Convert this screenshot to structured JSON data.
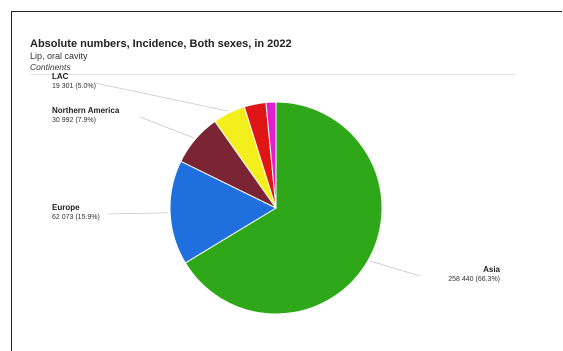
{
  "header": {
    "title": "Absolute numbers, Incidence, Both sexes, in 2022",
    "subtitle": "Lip, oral cavity",
    "subsubtitle": "Continents"
  },
  "chart_data": {
    "type": "pie",
    "title": "Absolute numbers, Incidence, Both sexes, in 2022",
    "subtitle": "Lip, oral cavity",
    "slices": [
      {
        "label": "Asia",
        "value": 258440,
        "value_text": "258 440 (66.3%)",
        "percent": 66.3,
        "color": "#2ea818"
      },
      {
        "label": "Europe",
        "value": 62073,
        "value_text": "62 073 (15.9%)",
        "percent": 15.9,
        "color": "#1f6fde"
      },
      {
        "label": "Northern America",
        "value": 30992,
        "value_text": "30 992 (7.9%)",
        "percent": 7.9,
        "color": "#7a2434"
      },
      {
        "label": "LAC",
        "value": 19301,
        "value_text": "19 301 (5.0%)",
        "percent": 5.0,
        "color": "#f3ef1c"
      },
      {
        "label": "",
        "value": 12900,
        "value_text": "",
        "percent": 3.3,
        "color": "#e01616"
      },
      {
        "label": "",
        "value": 5900,
        "value_text": "",
        "percent": 1.5,
        "color": "#e21fcf"
      }
    ],
    "start": "12 o'clock",
    "direction": "clockwise"
  }
}
